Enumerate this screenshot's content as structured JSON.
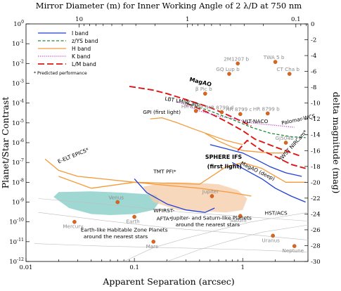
{
  "chart_data": {
    "type": "line",
    "title": "",
    "xlabel": "Apparent Separation (arcsec)",
    "ylabel": "Planet/Star Contrast",
    "top_axis_label": "Mirror Diameter (m) for Inner Working Angle of 2 λ/D at 750 nm",
    "right_axis_label": "delta magnitude (mag)",
    "x_scale": "log",
    "y_scale": "log",
    "xlim": [
      0.01,
      4
    ],
    "ylim": [
      1e-12,
      1
    ],
    "x_ticks": [
      0.01,
      0.1,
      1
    ],
    "x_tick_labels": [
      "0.01",
      "0.1",
      "1"
    ],
    "y_ticks": [
      1,
      0.1,
      0.01,
      0.001,
      0.0001,
      1e-05,
      1e-06,
      1e-07,
      1e-08,
      1e-09,
      1e-10,
      1e-11,
      1e-12
    ],
    "y_tick_labels": [
      {
        "base": "10",
        "exp": "0"
      },
      {
        "base": "10",
        "exp": "-1"
      },
      {
        "base": "10",
        "exp": "-2"
      },
      {
        "base": "10",
        "exp": "-3"
      },
      {
        "base": "10",
        "exp": "-4"
      },
      {
        "base": "10",
        "exp": "-5"
      },
      {
        "base": "10",
        "exp": "-6"
      },
      {
        "base": "10",
        "exp": "-7"
      },
      {
        "base": "10",
        "exp": "-8"
      },
      {
        "base": "10",
        "exp": "-9"
      },
      {
        "base": "10",
        "exp": "-10"
      },
      {
        "base": "10",
        "exp": "-11"
      },
      {
        "base": "10",
        "exp": "-12"
      }
    ],
    "top_ticks": [
      {
        "diameter_m": 10,
        "label": "10"
      },
      {
        "diameter_m": 1,
        "label": "1"
      },
      {
        "diameter_m": 0.1,
        "label": "0.1"
      }
    ],
    "right_ticks": [
      0,
      -2,
      -4,
      -6,
      -8,
      -10,
      -12,
      -14,
      -16,
      -18,
      -20,
      -22,
      -24,
      -26,
      -28,
      -30
    ],
    "right_tick_labels": [
      "0",
      "-2",
      "-4",
      "-6",
      "-8",
      "-10",
      "-12",
      "-14",
      "-16",
      "-18",
      "-20",
      "-22",
      "-24",
      "-26",
      "-28",
      "-30"
    ],
    "grid": false,
    "legend": {
      "placement": "top-left",
      "entries": [
        {
          "label": "I band",
          "color": "#1f3fd6",
          "style": "solid"
        },
        {
          "label": "z/YS band",
          "color": "#1f8a3a",
          "style": "dashed"
        },
        {
          "label": "H band",
          "color": "#f39b3a",
          "style": "solid"
        },
        {
          "label": "K band",
          "color": "#c13fd0",
          "style": "dotted"
        },
        {
          "label": "L/M band",
          "color": "#e01414",
          "style": "longdash"
        }
      ],
      "note": "* Predicted performance"
    },
    "regions": [
      {
        "label": "Earth-like Habitable Zone Planets around the nearest stars",
        "color": "#7fcbc4",
        "x": [
          0.018,
          0.02,
          0.04,
          0.08,
          0.13,
          0.16,
          0.17,
          0.15,
          0.1,
          0.06,
          0.04,
          0.025,
          0.018
        ],
        "y": [
          1.8e-09,
          3.2e-09,
          3.5e-09,
          3e-09,
          2.5e-09,
          2.3e-09,
          1e-09,
          4e-10,
          2.5e-10,
          2.2e-10,
          2.5e-10,
          5e-10,
          1.8e-09
        ]
      },
      {
        "label": "Jupiter- and Saturn-like Planets around the nearest stars",
        "color": "#f5cba6",
        "x": [
          0.12,
          0.2,
          0.3,
          0.6,
          0.9,
          1.1,
          1.0,
          0.7,
          0.4,
          0.25,
          0.15,
          0.12
        ],
        "y": [
          6e-09,
          1e-08,
          1e-08,
          8e-09,
          4e-09,
          1.5e-09,
          4e-10,
          3e-10,
          3.5e-10,
          4e-10,
          1e-09,
          6e-09
        ]
      }
    ],
    "series": [
      {
        "name": "MagAO",
        "band": "L/M band",
        "color": "#e01414",
        "style": "longdash",
        "x": [
          0.09,
          0.15,
          0.2,
          0.3,
          0.5,
          0.8,
          1.2
        ],
        "y": [
          0.0007,
          0.00045,
          0.0003,
          0.00015,
          6e-05,
          2e-05,
          7e-06
        ]
      },
      {
        "name": "LBT LMIRCam",
        "band": "L/M band",
        "color": "#e01414",
        "style": "longdash",
        "x": [
          0.3,
          0.5,
          0.7,
          1.0,
          1.3,
          2.0,
          3.5
        ],
        "y": [
          0.0001,
          3e-05,
          1.2e-05,
          4e-06,
          1.5e-06,
          6e-07,
          2e-07
        ]
      },
      {
        "name": "VLT-NACO",
        "band": "K band",
        "color": "#c13fd0",
        "style": "dotted",
        "x": [
          0.25,
          0.3,
          0.4,
          0.6,
          0.9,
          1.2,
          1.8,
          3.0
        ],
        "y": [
          0.00012,
          8e-05,
          4e-05,
          2.2e-05,
          1.5e-05,
          1e-05,
          8e-06,
          6e-06
        ]
      },
      {
        "name": "Palomar-WCS",
        "band": "z/YS band",
        "color": "#1f8a3a",
        "style": "dashed",
        "x": [
          0.3,
          0.5,
          0.8,
          1.2,
          1.8,
          2.8,
          3.8
        ],
        "y": [
          0.0001,
          4e-05,
          1.5e-05,
          6e-06,
          3e-06,
          2e-06,
          1.8e-06
        ]
      },
      {
        "name": "GPI (first light)",
        "band": "H band",
        "color": "#f39b3a",
        "style": "solid",
        "x": [
          0.14,
          0.18,
          0.25,
          0.35,
          0.5,
          0.7,
          1.0
        ],
        "y": [
          1.6e-05,
          1.8e-05,
          1e-05,
          5e-06,
          2.5e-06,
          1.3e-06,
          8e-07
        ]
      },
      {
        "name": "SPHERE IFS (first light)",
        "band": "H band",
        "color": "#f39b3a",
        "style": "solid",
        "x": [
          0.45,
          0.6,
          0.8,
          1.0,
          1.3,
          1.8,
          2.5
        ],
        "y": [
          3e-06,
          1.2e-06,
          6e-07,
          4e-07,
          3.5e-07,
          3e-07,
          3e-07
        ]
      },
      {
        "name": "JWST NIRCam*",
        "band": "L/M band",
        "color": "#e01414",
        "style": "longdash",
        "x": [
          0.9,
          1.1,
          1.5,
          2.0,
          2.8,
          3.8
        ],
        "y": [
          4e-07,
          1.3e-06,
          4e-07,
          2e-07,
          8e-08,
          5e-08
        ]
      },
      {
        "name": "MagAO (deep)",
        "band": "I band",
        "color": "#1f3fd6",
        "style": "solid",
        "x": [
          0.5,
          0.7,
          1.0,
          1.3,
          1.8,
          2.5,
          3.5
        ],
        "y": [
          8e-07,
          5e-07,
          3e-07,
          1.5e-07,
          6e-08,
          3e-08,
          2e-08
        ]
      },
      {
        "name": "E-ELT EPICS*",
        "band": "H band",
        "color": "#f39b3a",
        "style": "solid",
        "x": [
          0.015,
          0.02,
          0.03,
          0.05,
          0.1,
          0.2,
          0.4,
          0.8,
          1.2
        ],
        "y": [
          1.5e-07,
          4e-08,
          2e-08,
          1.5e-08,
          1e-08,
          7e-09,
          5e-09,
          3e-09,
          2e-09
        ]
      },
      {
        "name": "TMT PFI*",
        "band": "H band",
        "color": "#f39b3a",
        "style": "solid",
        "x": [
          0.02,
          0.04,
          0.1,
          0.2,
          0.4,
          0.7,
          1.0,
          1.5,
          2.5,
          3.8
        ],
        "y": [
          2e-08,
          5e-09,
          1e-08,
          9e-09,
          8e-09,
          6e-08,
          1e-07,
          5e-08,
          1e-08,
          1e-08
        ]
      },
      {
        "name": "WFIRST-AFTA*",
        "band": "I band",
        "color": "#1f3fd6",
        "style": "solid",
        "x": [
          0.1,
          0.13,
          0.2,
          0.3,
          0.45,
          0.55
        ],
        "y": [
          1.5e-08,
          3e-09,
          8e-10,
          4e-10,
          3e-10,
          5e-10
        ]
      },
      {
        "name": "HST/ACS",
        "band": "I band",
        "color": "#1f3fd6",
        "style": "solid",
        "x": [
          0.8,
          1.0,
          1.5,
          2.0,
          2.8,
          3.8
        ],
        "y": [
          1e-07,
          5e-08,
          1.5e-08,
          5e-09,
          2e-09,
          1e-09
        ]
      }
    ],
    "points": [
      {
        "label": "β Pic b",
        "x": 0.45,
        "y": 0.0003
      },
      {
        "label": "HR 8799 e",
        "x": 0.37,
        "y": 4e-05
      },
      {
        "label": "HR 8799 d",
        "x": 0.64,
        "y": 3.5e-05
      },
      {
        "label": "HR 8799 c",
        "x": 0.95,
        "y": 2.8e-05
      },
      {
        "label": "HR 8799 b",
        "x": 1.7,
        "y": 3e-05
      },
      {
        "label": "GQ Lup b",
        "x": 0.75,
        "y": 0.003
      },
      {
        "label": "2M1207 b",
        "x": 0.9,
        "y": 0.01
      },
      {
        "label": "TWA 5 b",
        "x": 2.0,
        "y": 0.012
      },
      {
        "label": "CT Cha b",
        "x": 2.7,
        "y": 0.003
      },
      {
        "label": "GJ504b",
        "x": 2.5,
        "y": 1e-06
      },
      {
        "label": "Venus",
        "x": 0.07,
        "y": 1e-09
      },
      {
        "label": "Earth",
        "x": 0.1,
        "y": 1.8e-10
      },
      {
        "label": "Mercury",
        "x": 0.028,
        "y": 1e-10
      },
      {
        "label": "Mars",
        "x": 0.15,
        "y": 1e-11
      },
      {
        "label": "Jupiter",
        "x": 0.52,
        "y": 2e-09
      },
      {
        "label": "Saturn",
        "x": 0.95,
        "y": 2e-10
      },
      {
        "label": "Uranus",
        "x": 1.9,
        "y": 2e-11
      },
      {
        "label": "Neptune",
        "x": 3.0,
        "y": 6e-12
      }
    ],
    "annotations": [
      {
        "label": "MagAO",
        "x": 0.32,
        "y": 0.0013,
        "rotate": 14,
        "bold": true
      },
      {
        "label": "LBT LMIRCam",
        "x": 0.19,
        "y": 0.00014,
        "rotate": 10,
        "bold": false
      },
      {
        "label": "GPI (first light)",
        "x": 0.12,
        "y": 2.8e-05,
        "rotate": 0,
        "bold": false
      },
      {
        "label": "VLT-NACO",
        "x": 1.0,
        "y": 1e-05,
        "rotate": 0,
        "bold": false
      },
      {
        "label": "Palomar-WCS",
        "x": 2.3,
        "y": 8e-06,
        "rotate": -12,
        "bold": false
      },
      {
        "label": "SPHERE IFS",
        "x": 0.45,
        "y": 1.5e-07,
        "rotate": 0,
        "bold": true
      },
      {
        "label": "(first light)",
        "x": 0.47,
        "y": 5e-08,
        "rotate": 0,
        "bold": true
      },
      {
        "label": "JWST NIRCam*",
        "x": 2.3,
        "y": 1.3e-07,
        "rotate": -48,
        "bold": false
      },
      {
        "label": "MagAO (deep)",
        "x": 0.95,
        "y": 8e-08,
        "rotate": 26,
        "bold": false
      },
      {
        "label": "E-ELT EPICS*",
        "x": 0.02,
        "y": 9e-08,
        "rotate": -22,
        "bold": false
      },
      {
        "label": "TMT PFI*",
        "x": 0.15,
        "y": 2.8e-08,
        "rotate": 0,
        "bold": false
      },
      {
        "label": "HST/ACS",
        "x": 1.6,
        "y": 2.3e-10,
        "rotate": 0,
        "bold": false
      },
      {
        "label": "WFIRST-",
        "x": 0.15,
        "y": 3e-10,
        "rotate": 0,
        "bold": false
      },
      {
        "label": "AFTA*",
        "x": 0.16,
        "y": 1.2e-10,
        "rotate": 0,
        "bold": false
      },
      {
        "label": "Jupiter- and Saturn-like Planets",
        "x": 0.22,
        "y": 1.3e-10,
        "rotate": 0,
        "bold": false
      },
      {
        "label": "around the nearest stars",
        "x": 0.24,
        "y": 6e-11,
        "rotate": 0,
        "bold": false
      },
      {
        "label": "Earth-like Habitable Zone Planets",
        "x": 0.032,
        "y": 3.2e-11,
        "rotate": 0,
        "bold": false
      },
      {
        "label": "around the nearest stars",
        "x": 0.034,
        "y": 1.5e-11,
        "rotate": 0,
        "bold": false
      }
    ]
  }
}
